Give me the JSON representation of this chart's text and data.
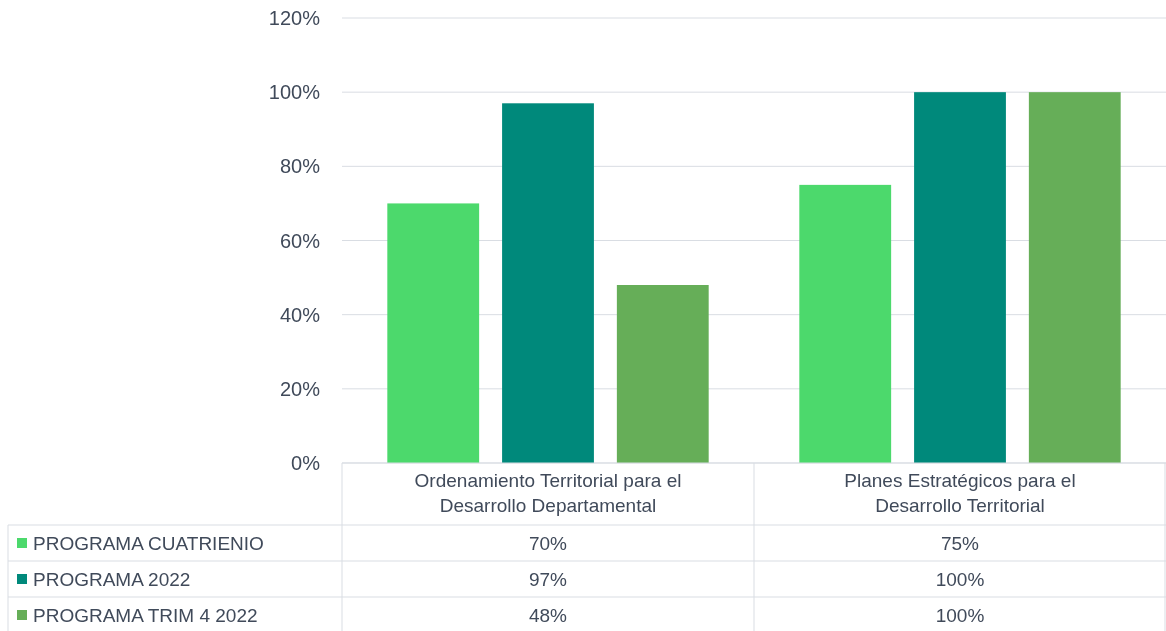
{
  "chart_data": {
    "type": "bar",
    "categories": [
      "Ordenamiento Territorial para el Desarrollo Departamental",
      "Planes Estratégicos para el Desarrollo Territorial"
    ],
    "series": [
      {
        "name": "PROGRAMA CUATRIENIO",
        "color": "#4cd96c",
        "values": [
          70,
          75
        ],
        "value_labels": [
          "70%",
          "75%"
        ]
      },
      {
        "name": "PROGRAMA 2022",
        "color": "#00897b",
        "values": [
          97,
          100
        ],
        "value_labels": [
          "97%",
          "100%"
        ]
      },
      {
        "name": "PROGRAMA TRIM 4 2022",
        "color": "#66ae58",
        "values": [
          48,
          100
        ],
        "value_labels": [
          "48%",
          "100%"
        ]
      }
    ],
    "ylim": [
      0,
      120
    ],
    "yticks": [
      {
        "value": 0,
        "label": "0%"
      },
      {
        "value": 20,
        "label": "20%"
      },
      {
        "value": 40,
        "label": "40%"
      },
      {
        "value": 60,
        "label": "60%"
      },
      {
        "value": 80,
        "label": "80%"
      },
      {
        "value": 100,
        "label": "100%"
      },
      {
        "value": 120,
        "label": "120%"
      }
    ],
    "grid": "y",
    "legend": "bottom"
  }
}
